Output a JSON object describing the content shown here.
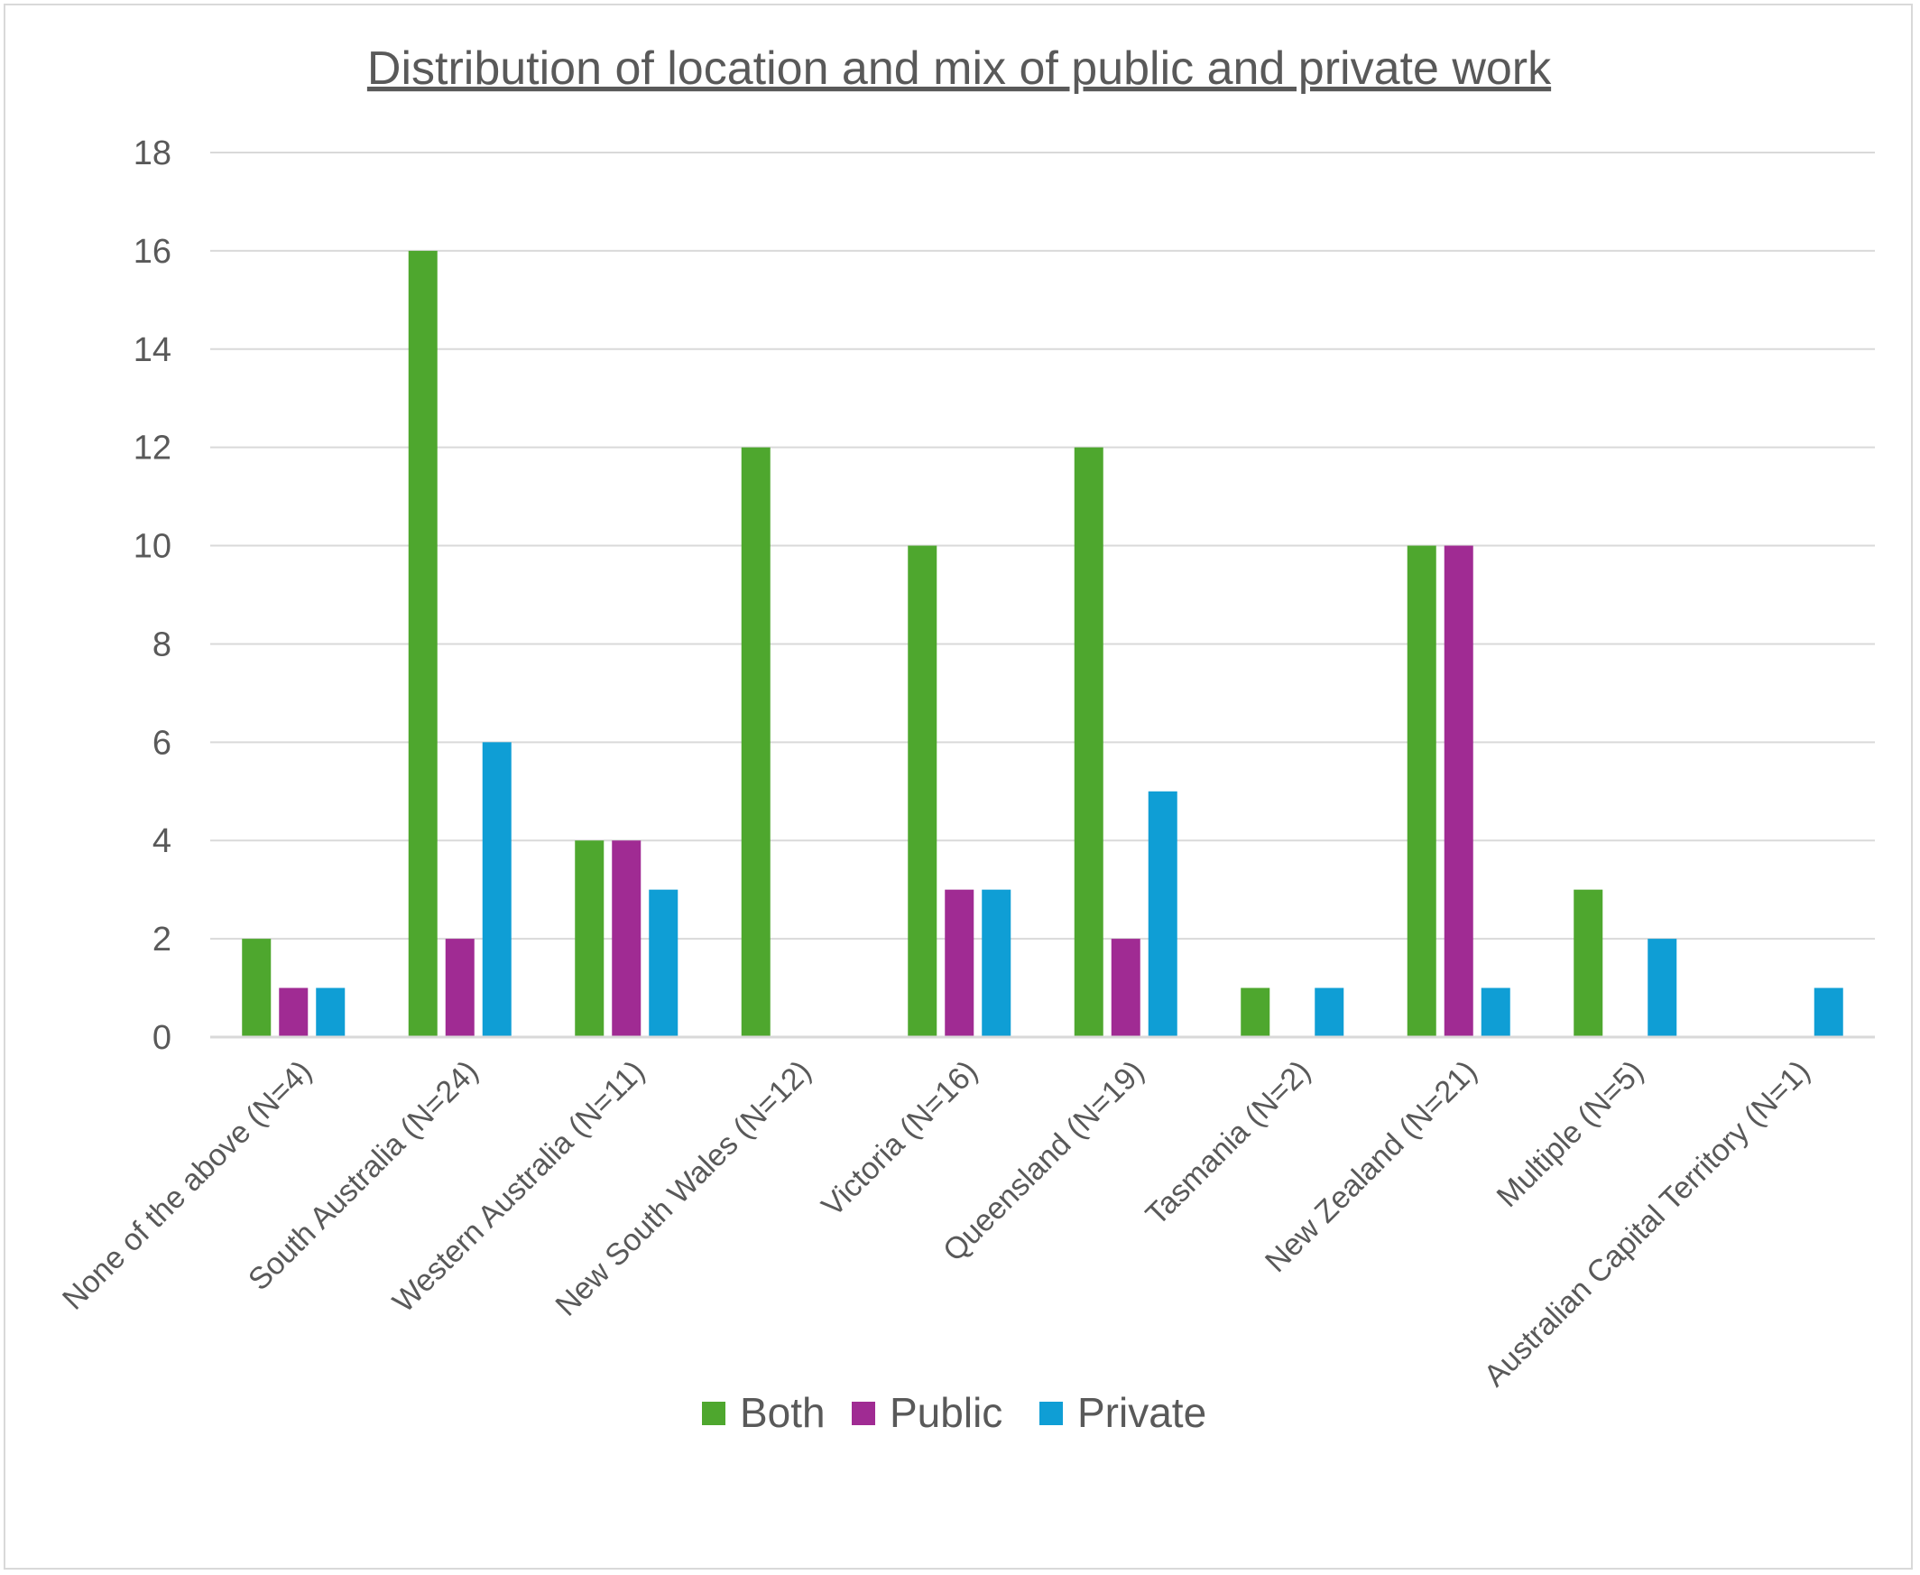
{
  "chart_data": {
    "type": "bar",
    "title": "Distribution of location and mix of public and private work",
    "xlabel": "",
    "ylabel": "",
    "ylim": [
      0,
      18
    ],
    "yticks": [
      0,
      2,
      4,
      6,
      8,
      10,
      12,
      14,
      16,
      18
    ],
    "grid": true,
    "legend_position": "bottom",
    "categories": [
      "None of the above (N=4)",
      "South Australia (N=24)",
      "Western Australia (N=11)",
      "New South Wales (N=12)",
      "Victoria (N=16)",
      "Queensland (N=19)",
      "Tasmania (N=2)",
      "New Zealand (N=21)",
      "Multiple (N=5)",
      "Australian Capital Territory (N=1)"
    ],
    "series": [
      {
        "name": "Both",
        "color": "#4ea72e",
        "values": [
          2,
          16,
          4,
          12,
          10,
          12,
          1,
          10,
          3,
          0
        ]
      },
      {
        "name": "Public",
        "color": "#a02b93",
        "values": [
          1,
          2,
          4,
          0,
          3,
          2,
          0,
          10,
          0,
          0
        ]
      },
      {
        "name": "Private",
        "color": "#0f9ed5",
        "values": [
          1,
          6,
          3,
          0,
          3,
          5,
          1,
          1,
          2,
          1
        ]
      }
    ]
  }
}
